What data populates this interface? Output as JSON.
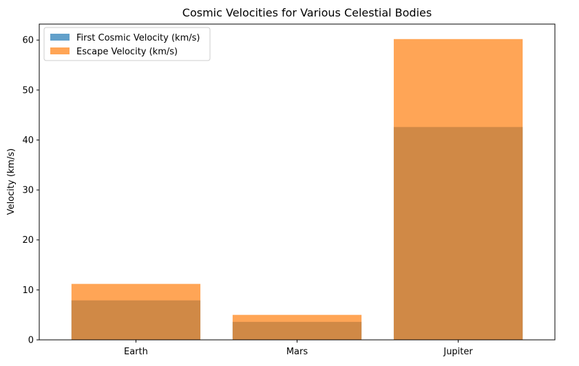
{
  "chart_data": {
    "type": "bar",
    "title": "Cosmic Velocities for Various Celestial Bodies",
    "xlabel": "",
    "ylabel": "Velocity (km/s)",
    "categories": [
      "Earth",
      "Mars",
      "Jupiter"
    ],
    "series": [
      {
        "name": "First Cosmic Velocity (km/s)",
        "values": [
          7.9,
          3.6,
          42.6
        ],
        "color": "#1f77b4",
        "opacity": 0.7
      },
      {
        "name": "Escape Velocity (km/s)",
        "values": [
          11.2,
          5.0,
          60.2
        ],
        "color": "#ff7f0e",
        "opacity": 0.7
      }
    ],
    "ylim": [
      0,
      63.2
    ],
    "yticks": [
      0,
      10,
      20,
      30,
      40,
      50,
      60
    ],
    "legend": "top-left",
    "grid": false,
    "overlay": true
  }
}
